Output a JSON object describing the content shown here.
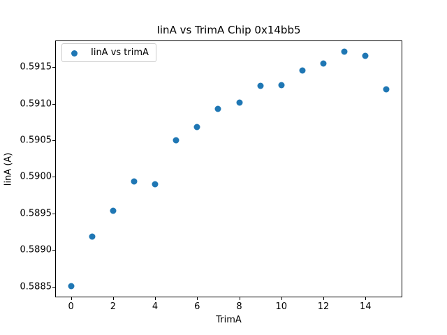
{
  "chart_data": {
    "type": "scatter",
    "title": "IinA vs TrimA Chip 0x14bb5",
    "xlabel": "TrimA",
    "ylabel": "IinA (A)",
    "legend_label": "IinA vs trimA",
    "legend_position": "upper left",
    "marker": "circle",
    "marker_color": "#1f77b4",
    "grid": false,
    "x": [
      0,
      1,
      2,
      3,
      4,
      5,
      6,
      7,
      8,
      9,
      10,
      11,
      12,
      13,
      14,
      15
    ],
    "y": [
      0.58851,
      0.58919,
      0.58954,
      0.58994,
      0.5899,
      0.5905,
      0.59068,
      0.59093,
      0.59101,
      0.59124,
      0.59125,
      0.59145,
      0.59155,
      0.59171,
      0.59165,
      0.5912
    ],
    "xlim": [
      -0.75,
      15.75
    ],
    "ylim": [
      0.588357,
      0.591862
    ],
    "x_ticks": [
      0,
      2,
      4,
      6,
      8,
      10,
      12,
      14
    ],
    "y_ticks": [
      0.5885,
      0.589,
      0.5895,
      0.59,
      0.5905,
      0.591,
      0.5915
    ],
    "y_tick_decimals": 4
  }
}
